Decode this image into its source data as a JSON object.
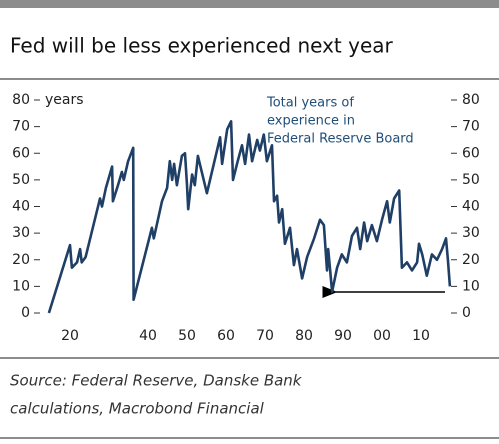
{
  "chart_data": {
    "type": "line",
    "title": "Fed will be less experienced next year",
    "y_unit_label": "years",
    "annotation": [
      "Total years of",
      "experience in",
      "Federal Reserve Board"
    ],
    "source": [
      "Source: Federal Reserve, Danske Bank",
      "calculations, Macrobond Financial"
    ],
    "color": "#1f3f66",
    "x": [
      1914.6,
      1920,
      1920.5,
      1921.8,
      1922.6,
      1923,
      1924,
      1927.7,
      1928.2,
      1929.2,
      1930.8,
      1931,
      1932.3,
      1933.3,
      1933.8,
      1934.9,
      1936.2,
      1936.3,
      1941,
      1941.5,
      1943.6,
      1944.9,
      1945.6,
      1946.2,
      1946.7,
      1947.4,
      1948.7,
      1949.5,
      1950,
      1950.3,
      1951.3,
      1952,
      1952.8,
      1955.1,
      1958.5,
      1959,
      1960.3,
      1961.3,
      1961.8,
      1963,
      1964.1,
      1964.9,
      1965.9,
      1966.7,
      1968,
      1968.7,
      1969.7,
      1970.5,
      1971.8,
      1972.3,
      1973.1,
      1973.6,
      1974.4,
      1975.1,
      1976.4,
      1977.4,
      1978.2,
      1979.5,
      1980.8,
      1982.6,
      1984.1,
      1985.1,
      1985.9,
      1986.2,
      1987.2,
      1988.5,
      1989.7,
      1991,
      1992.3,
      1993.6,
      1994.4,
      1995.4,
      1996.2,
      1997.4,
      1998.7,
      2000,
      2001.3,
      2002,
      2003.1,
      2004.4,
      2005.1,
      2006.4,
      2007.7,
      2009,
      2009.5,
      2010.3,
      2011.5,
      2012.8,
      2014.1,
      2015.4,
      2016.4,
      2016.9,
      2017.4
    ],
    "values": [
      0,
      25.5,
      17,
      19,
      24,
      19,
      21,
      43,
      40,
      47,
      55,
      42,
      48,
      53,
      50,
      57,
      62,
      5,
      32,
      28,
      42,
      47,
      57,
      50,
      56,
      48,
      59,
      60,
      48,
      39,
      52,
      48,
      59,
      45,
      66,
      56,
      69,
      72,
      50,
      57,
      63,
      56,
      67,
      57,
      65,
      61,
      67,
      57,
      63,
      42,
      44,
      34,
      39,
      26,
      32,
      18,
      24,
      13,
      21,
      28,
      35,
      33,
      16,
      24,
      8,
      17,
      22,
      19,
      29,
      32,
      24,
      34,
      27,
      33,
      27,
      35,
      42,
      34,
      43,
      46,
      17,
      19,
      16,
      19,
      26,
      22,
      14,
      22,
      20,
      24,
      28,
      20,
      10
    ],
    "xlim": [
      1912,
      2018
    ],
    "xticks": [
      {
        "value": 1920,
        "label": "20"
      },
      {
        "value": 1940,
        "label": "40"
      },
      {
        "value": 1950,
        "label": "50"
      },
      {
        "value": 1960,
        "label": "60"
      },
      {
        "value": 1970,
        "label": "70"
      },
      {
        "value": 1980,
        "label": "80"
      },
      {
        "value": 1990,
        "label": "90"
      },
      {
        "value": 2000,
        "label": "00"
      },
      {
        "value": 2010,
        "label": "10"
      }
    ],
    "ylim": [
      0,
      80
    ],
    "yticks": [
      0,
      10,
      20,
      30,
      40,
      50,
      60,
      70,
      80
    ]
  }
}
